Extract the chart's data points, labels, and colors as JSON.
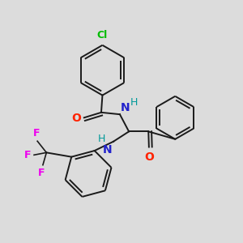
{
  "background_color": "#dcdcdc",
  "bond_color": "#1a1a1a",
  "cl_color": "#00bb00",
  "o_color": "#ff2200",
  "n_color": "#2222cc",
  "f_color": "#ee00ee",
  "h_color": "#009999",
  "figsize": [
    3.0,
    3.0
  ],
  "dpi": 100,
  "xlim": [
    0,
    10
  ],
  "ylim": [
    0,
    10
  ]
}
